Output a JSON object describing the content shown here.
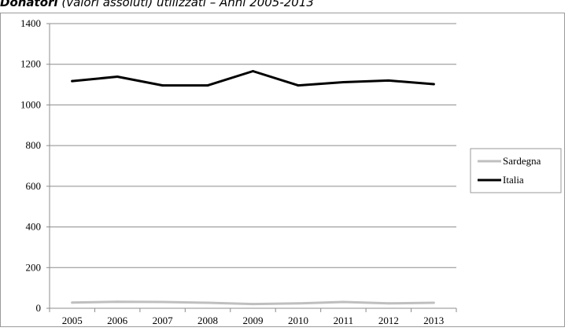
{
  "title": {
    "bold": "Donatori",
    "rest": " (valori assoluti) utilizzati – Anni 2005-2013"
  },
  "chart_data": {
    "type": "line",
    "title": "Donatori (valori assoluti) utilizzati – Anni 2005-2013",
    "categories": [
      "2005",
      "2006",
      "2007",
      "2008",
      "2009",
      "2010",
      "2011",
      "2012",
      "2013"
    ],
    "ylim": [
      0,
      1400
    ],
    "yticks": [
      "0",
      "200",
      "400",
      "600",
      "800",
      "1000",
      "1200",
      "1400"
    ],
    "grid": true,
    "legend_position": "right",
    "series": [
      {
        "name": "Sardegna",
        "color": "#bfbfbf",
        "values": [
          28,
          32,
          31,
          27,
          21,
          24,
          31,
          24,
          27
        ]
      },
      {
        "name": "Italia",
        "color": "#000000",
        "values": [
          1117,
          1139,
          1096,
          1096,
          1166,
          1096,
          1112,
          1120,
          1102
        ]
      }
    ]
  }
}
